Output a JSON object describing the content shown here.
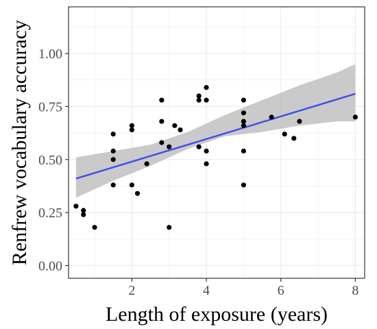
{
  "chart_data": {
    "type": "scatter",
    "title": "",
    "xlabel": "Length of exposure (years)",
    "ylabel": "Renfrew vocabulary accuracy",
    "xlim": [
      0.3,
      8.25
    ],
    "ylim": [
      -0.06,
      1.22
    ],
    "xticks": [
      2,
      4,
      6,
      8
    ],
    "xtick_labels": [
      "2",
      "4",
      "6",
      "8"
    ],
    "yticks": [
      0,
      0.25,
      0.5,
      0.75,
      1.0
    ],
    "ytick_labels": [
      "0.00",
      "0.25",
      "0.50",
      "0.75",
      "1.00"
    ],
    "grid": true,
    "legend": "none",
    "colors": {
      "point": "#000000",
      "fit_line": "#3f51e8",
      "confidence_band": "#bdbdbd",
      "grid": "#ebebeb",
      "panel_border": "#333333"
    },
    "points": [
      {
        "x": 0.5,
        "y": 0.28
      },
      {
        "x": 0.7,
        "y": 0.26
      },
      {
        "x": 0.7,
        "y": 0.24
      },
      {
        "x": 1.0,
        "y": 0.18
      },
      {
        "x": 1.5,
        "y": 0.62
      },
      {
        "x": 1.5,
        "y": 0.54
      },
      {
        "x": 1.5,
        "y": 0.5
      },
      {
        "x": 1.5,
        "y": 0.38
      },
      {
        "x": 2.0,
        "y": 0.66
      },
      {
        "x": 2.0,
        "y": 0.64
      },
      {
        "x": 2.0,
        "y": 0.38
      },
      {
        "x": 2.15,
        "y": 0.34
      },
      {
        "x": 2.4,
        "y": 0.48
      },
      {
        "x": 2.8,
        "y": 0.78
      },
      {
        "x": 2.8,
        "y": 0.68
      },
      {
        "x": 2.8,
        "y": 0.58
      },
      {
        "x": 3.0,
        "y": 0.56
      },
      {
        "x": 3.0,
        "y": 0.18
      },
      {
        "x": 3.15,
        "y": 0.66
      },
      {
        "x": 3.3,
        "y": 0.64
      },
      {
        "x": 3.8,
        "y": 0.8
      },
      {
        "x": 3.8,
        "y": 0.78
      },
      {
        "x": 3.8,
        "y": 0.56
      },
      {
        "x": 4.0,
        "y": 0.84
      },
      {
        "x": 4.0,
        "y": 0.78
      },
      {
        "x": 4.0,
        "y": 0.54
      },
      {
        "x": 4.0,
        "y": 0.48
      },
      {
        "x": 5.0,
        "y": 0.78
      },
      {
        "x": 5.0,
        "y": 0.72
      },
      {
        "x": 5.0,
        "y": 0.68
      },
      {
        "x": 5.0,
        "y": 0.66
      },
      {
        "x": 5.0,
        "y": 0.54
      },
      {
        "x": 5.0,
        "y": 0.38
      },
      {
        "x": 5.75,
        "y": 0.7
      },
      {
        "x": 6.1,
        "y": 0.62
      },
      {
        "x": 6.35,
        "y": 0.6
      },
      {
        "x": 6.5,
        "y": 0.68
      },
      {
        "x": 8.0,
        "y": 0.7
      }
    ],
    "fit_line": {
      "x": [
        0.5,
        8.0
      ],
      "y": [
        0.41,
        0.81
      ]
    },
    "confidence_band": {
      "x": [
        0.5,
        1.5,
        2.5,
        3.5,
        4.5,
        5.5,
        6.5,
        7.5,
        8.0
      ],
      "lower": [
        0.32,
        0.4,
        0.47,
        0.55,
        0.61,
        0.63,
        0.66,
        0.68,
        0.68
      ],
      "upper": [
        0.51,
        0.54,
        0.57,
        0.63,
        0.71,
        0.78,
        0.85,
        0.91,
        0.95
      ]
    }
  }
}
